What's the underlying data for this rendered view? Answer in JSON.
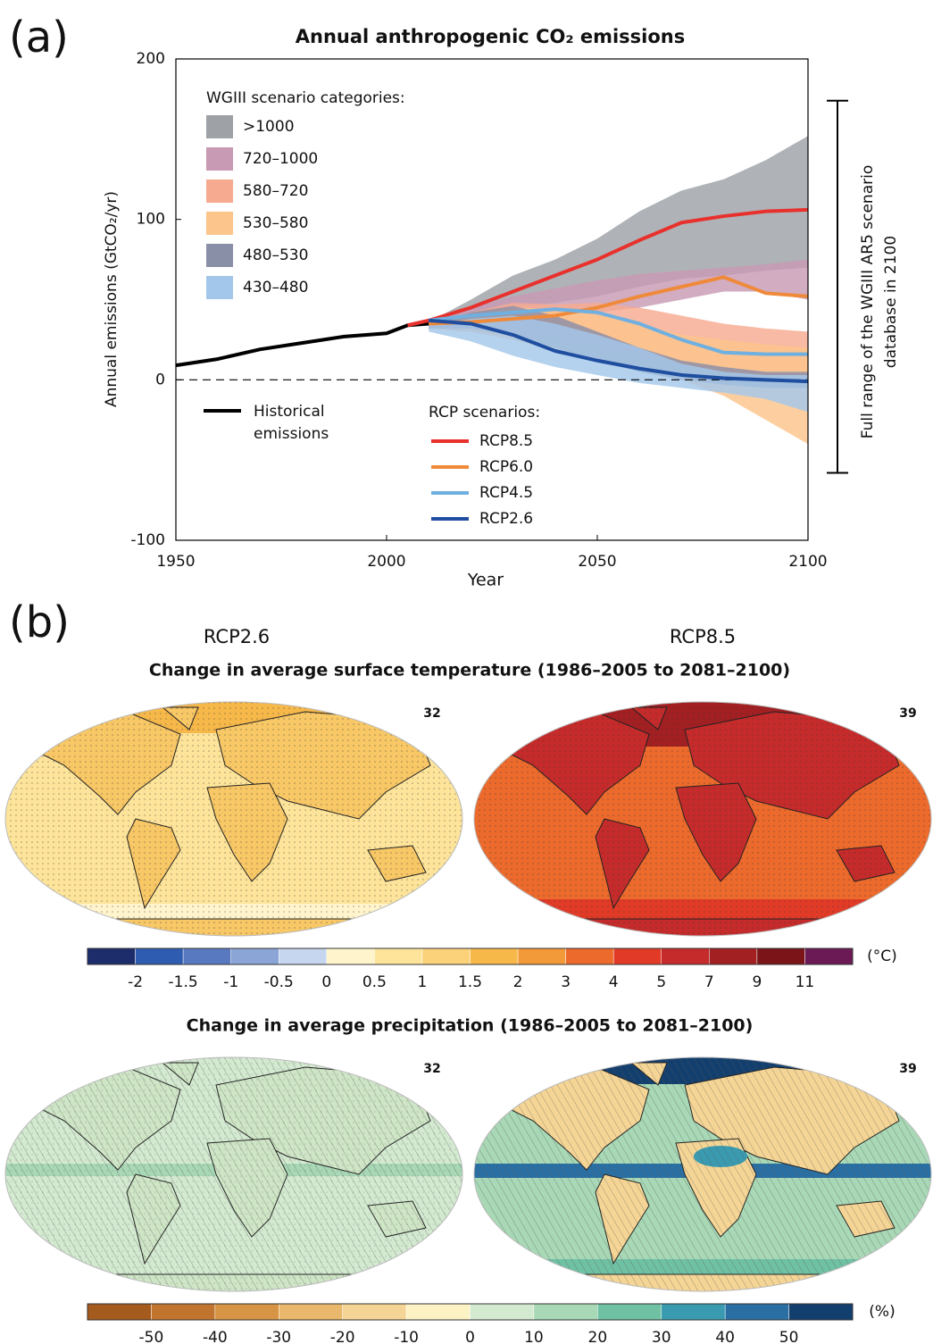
{
  "panel_labels": [
    "(a)",
    "(b)"
  ],
  "chart_data": {
    "type": "line",
    "title": "Annual anthropogenic CO₂ emissions",
    "ylabel": "Annual emissions (GtCO₂/yr)",
    "xlabel": "Year",
    "xlim": [
      1950,
      2100
    ],
    "xticks": [
      1950,
      2000,
      2050,
      2100
    ],
    "ylim": [
      -100,
      200
    ],
    "yticks": [
      -100,
      0,
      100,
      200
    ],
    "zero_line": true,
    "band_legend_title": "WGIII scenario categories:",
    "line_legend_title": "RCP scenarios:",
    "bands": [
      {
        "name": ">1000",
        "color": "#9ea2a7",
        "x": [
          2010,
          2020,
          2030,
          2040,
          2050,
          2060,
          2070,
          2080,
          2090,
          2100
        ],
        "upper": [
          36,
          50,
          65,
          75,
          88,
          105,
          118,
          125,
          137,
          152
        ],
        "lower": [
          35,
          40,
          45,
          48,
          52,
          58,
          63,
          65,
          68,
          70
        ]
      },
      {
        "name": "720–1000",
        "color": "#c89ab3",
        "x": [
          2010,
          2020,
          2030,
          2040,
          2050,
          2060,
          2070,
          2080,
          2090,
          2100
        ],
        "upper": [
          35,
          45,
          52,
          57,
          62,
          66,
          68,
          70,
          72,
          75
        ],
        "lower": [
          33,
          35,
          38,
          40,
          42,
          45,
          50,
          55,
          55,
          50
        ]
      },
      {
        "name": "580–720",
        "color": "#f6ab90",
        "x": [
          2010,
          2020,
          2030,
          2040,
          2050,
          2060,
          2070,
          2080,
          2090,
          2100
        ],
        "upper": [
          35,
          42,
          48,
          47,
          48,
          45,
          40,
          35,
          32,
          30
        ],
        "lower": [
          32,
          30,
          28,
          25,
          20,
          15,
          10,
          5,
          3,
          2
        ]
      },
      {
        "name": "530–580",
        "color": "#fcc58b",
        "x": [
          2010,
          2020,
          2030,
          2040,
          2050,
          2060,
          2070,
          2080,
          2090,
          2100
        ],
        "upper": [
          34,
          40,
          45,
          44,
          42,
          35,
          28,
          25,
          22,
          20
        ],
        "lower": [
          32,
          30,
          25,
          18,
          12,
          5,
          0,
          -10,
          -25,
          -40
        ]
      },
      {
        "name": "480–530",
        "color": "#8a8fa8",
        "x": [
          2010,
          2020,
          2030,
          2040,
          2050,
          2060,
          2070,
          2080,
          2090,
          2100
        ],
        "upper": [
          34,
          42,
          46,
          40,
          30,
          20,
          12,
          8,
          5,
          5
        ],
        "lower": [
          32,
          32,
          28,
          20,
          12,
          5,
          0,
          -3,
          -5,
          -5
        ]
      },
      {
        "name": "430–480",
        "color": "#a3c7ea",
        "x": [
          2010,
          2020,
          2030,
          2040,
          2050,
          2060,
          2070,
          2080,
          2090,
          2100
        ],
        "upper": [
          34,
          38,
          40,
          35,
          28,
          20,
          10,
          5,
          3,
          3
        ],
        "lower": [
          30,
          24,
          15,
          8,
          3,
          -2,
          -5,
          -8,
          -12,
          -20
        ]
      }
    ],
    "series": [
      {
        "name": "Historical emissions",
        "color": "#000000",
        "x": [
          1950,
          1960,
          1970,
          1980,
          1990,
          2000,
          2005,
          2010
        ],
        "values": [
          9,
          13,
          19,
          23,
          27,
          29,
          34,
          35
        ]
      },
      {
        "name": "RCP8.5",
        "color": "#e8302c",
        "x": [
          2005,
          2010,
          2020,
          2030,
          2040,
          2050,
          2060,
          2070,
          2080,
          2090,
          2100
        ],
        "values": [
          34,
          37,
          45,
          55,
          65,
          75,
          87,
          98,
          102,
          105,
          106
        ]
      },
      {
        "name": "RCP6.0",
        "color": "#ef8a3a",
        "x": [
          2010,
          2020,
          2030,
          2040,
          2050,
          2060,
          2070,
          2080,
          2090,
          2100
        ],
        "values": [
          35,
          36,
          38,
          40,
          45,
          52,
          58,
          64,
          54,
          52
        ]
      },
      {
        "name": "RCP4.5",
        "color": "#6fb0e0",
        "x": [
          2010,
          2020,
          2030,
          2040,
          2050,
          2060,
          2070,
          2080,
          2090,
          2100
        ],
        "values": [
          37,
          40,
          42,
          44,
          42,
          35,
          25,
          17,
          16,
          16
        ]
      },
      {
        "name": "RCP2.6",
        "color": "#1f4ea0",
        "x": [
          2010,
          2020,
          2030,
          2040,
          2050,
          2060,
          2070,
          2080,
          2090,
          2100
        ],
        "values": [
          37,
          35,
          28,
          18,
          12,
          7,
          3,
          1,
          0,
          -1
        ]
      }
    ],
    "range_bar": {
      "label": "Full range of the WGIII AR5 scenario database in 2100",
      "values": [
        -58,
        174
      ]
    }
  },
  "maps": {
    "scenarios": [
      "RCP2.6",
      "RCP8.5"
    ],
    "panels": [
      {
        "title": "Change in average surface temperature (1986–2005 to 2081–2100)",
        "model_counts": [
          32,
          39
        ],
        "colorbar": {
          "unit": "(°C)",
          "ticks": [
            -2,
            -1.5,
            -1,
            -0.5,
            0,
            0.5,
            1,
            1.5,
            2,
            3,
            4,
            5,
            7,
            9,
            11
          ],
          "colors": [
            "#1d2d6b",
            "#2e5cb0",
            "#5878c0",
            "#8aa5d6",
            "#c5d6ee",
            "#fff4cc",
            "#fde49a",
            "#fbd27a",
            "#f7b84a",
            "#f29a3a",
            "#ec6a2c",
            "#e13b28",
            "#c52b2b",
            "#a21f22",
            "#7a1418",
            "#6b1a55"
          ]
        }
      },
      {
        "title": "Change in average precipitation (1986–2005 to 2081–2100)",
        "model_counts": [
          32,
          39
        ],
        "colorbar": {
          "unit": "(%)",
          "ticks": [
            -50,
            -40,
            -30,
            -20,
            -10,
            0,
            10,
            20,
            30,
            40,
            50
          ],
          "colors": [
            "#a55a1e",
            "#c0742e",
            "#d79445",
            "#eab86c",
            "#f5d595",
            "#fdf2c4",
            "#d3ead0",
            "#a8d8b5",
            "#6fc1a4",
            "#3a9bb0",
            "#2a6fa3",
            "#133f6e"
          ]
        }
      }
    ]
  }
}
